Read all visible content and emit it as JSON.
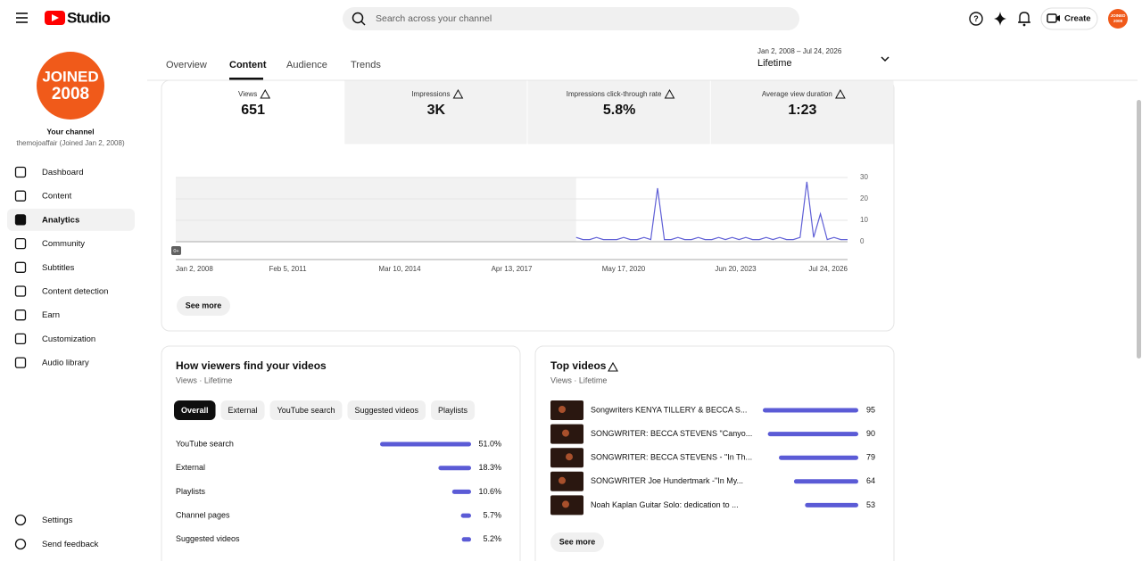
{
  "header": {
    "logo": "Studio",
    "search_placeholder": "Search across your channel",
    "create": "Create",
    "avatar": [
      "JOINED",
      "2008"
    ]
  },
  "sidebar": {
    "avatar": [
      "JOINED",
      "2008"
    ],
    "your_channel": "Your channel",
    "channel_name": "themojoaffair (Joined Jan 2, 2008)",
    "nav": [
      "Dashboard",
      "Content",
      "Analytics",
      "Community",
      "Subtitles",
      "Content detection",
      "Earn",
      "Customization",
      "Audio library"
    ],
    "active": 2,
    "bottom": [
      "Settings",
      "Send feedback"
    ]
  },
  "tabs": {
    "items": [
      "Overview",
      "Content",
      "Audience",
      "Trends"
    ],
    "active": 1
  },
  "date_range": {
    "range": "Jan 2, 2008 – Jul 24, 2026",
    "label": "Lifetime"
  },
  "metrics": [
    {
      "label": "Views",
      "value": "651"
    },
    {
      "label": "Impressions",
      "value": "3K"
    },
    {
      "label": "Impressions click-through rate",
      "value": "5.8%"
    },
    {
      "label": "Average view duration",
      "value": "1:23"
    }
  ],
  "chart_data": {
    "type": "line",
    "badge": "0+",
    "color": "#5f5fd6",
    "values": [
      null,
      null,
      null,
      null,
      null,
      null,
      null,
      null,
      null,
      null,
      null,
      null,
      null,
      null,
      null,
      null,
      null,
      null,
      null,
      null,
      null,
      null,
      null,
      null,
      null,
      null,
      null,
      null,
      null,
      null,
      null,
      null,
      null,
      null,
      null,
      null,
      null,
      null,
      null,
      null,
      null,
      null,
      null,
      null,
      null,
      null,
      null,
      null,
      null,
      null,
      null,
      null,
      null,
      null,
      null,
      null,
      null,
      null,
      null,
      2,
      1,
      1,
      2,
      1,
      1,
      1,
      2,
      1,
      1,
      2,
      1,
      25,
      1,
      1,
      2,
      1,
      1,
      2,
      1,
      1,
      2,
      1,
      2,
      1,
      2,
      1,
      1,
      2,
      1,
      2,
      1,
      1,
      2,
      28,
      2,
      13,
      1,
      2,
      1,
      1
    ],
    "xticks": [
      "Jan 2, 2008",
      "Feb 5, 2011",
      "Mar 10, 2014",
      "Apr 13, 2017",
      "May 17, 2020",
      "Jun 20, 2023",
      "Jul 24, 2026"
    ],
    "ylim": [
      0,
      30
    ],
    "yticks": [
      0,
      10,
      20,
      30
    ],
    "grid": true
  },
  "card_button": "See more",
  "traffic": {
    "title": "How viewers find your videos",
    "subtitle": "Views · Lifetime",
    "chips": [
      "Overall",
      "External",
      "YouTube search",
      "Suggested videos",
      "Playlists"
    ],
    "active_chip": 0,
    "chart": {
      "type": "bar",
      "orientation": "horizontal",
      "color": "#5b5bd6",
      "categories": [
        "YouTube search",
        "External",
        "Playlists",
        "Channel pages",
        "Suggested videos"
      ],
      "values": [
        51.0,
        18.3,
        10.6,
        5.7,
        5.2
      ],
      "value_labels": [
        "51.0%",
        "18.3%",
        "10.6%",
        "5.7%",
        "5.2%"
      ]
    }
  },
  "top_videos": {
    "title": "Top videos",
    "subtitle": "Views · Lifetime",
    "button": "See more",
    "chart": {
      "type": "bar",
      "orientation": "horizontal",
      "color": "#5b5bd6",
      "categories": [
        "Songwriters KENYA TILLERY & BECCA S...",
        "SONGWRITER: BECCA STEVENS \"Canyo...",
        "SONGWRITER: BECCA STEVENS - \"In Th...",
        "SONGWRITER Joe Hundertmark -\"In My...",
        "Noah Kaplan Guitar Solo: dedication to ..."
      ],
      "values": [
        95,
        90,
        79,
        64,
        53
      ]
    }
  }
}
